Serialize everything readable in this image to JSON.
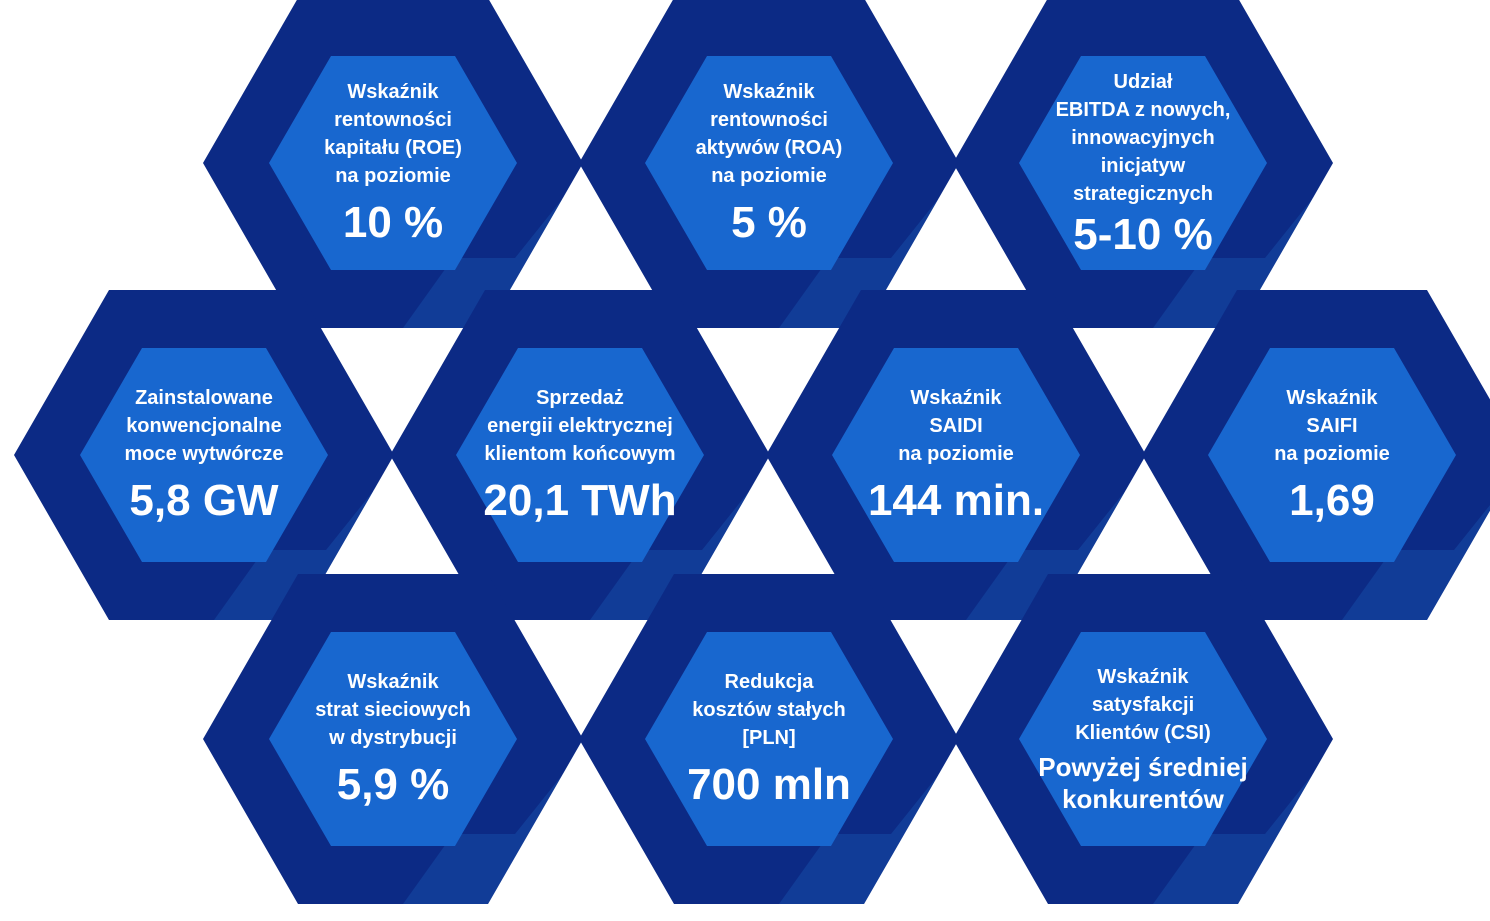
{
  "colors": {
    "outer_hex": "#0c2a85",
    "inner_hex": "#1867cf",
    "shadow": "#164aa6",
    "text": "#ffffff"
  },
  "tiles": [
    {
      "label": "Wskaźnik\nrentowności\nkapitału (ROE)\nna poziomie",
      "value": "10 %"
    },
    {
      "label": "Wskaźnik\nrentowności\naktywów (ROA)\nna poziomie",
      "value": "5 %"
    },
    {
      "label": "Udział\nEBITDA z nowych,\ninnowacyjnych\ninicjatyw\nstrategicznych",
      "value": "5-10 %"
    },
    {
      "label": "Zainstalowane\nkonwencjonalne\nmoce wytwórcze",
      "value": "5,8 GW"
    },
    {
      "label": "Sprzedaż\nenergii elektrycznej\nklientom końcowym",
      "value": "20,1 TWh"
    },
    {
      "label": "Wskaźnik\nSAIDI\nna poziomie",
      "value": "144 min."
    },
    {
      "label": "Wskaźnik\nSAIFI\nna poziomie",
      "value": "1,69"
    },
    {
      "label": "Wskaźnik\nstrat sieciowych\nw dystrybucji",
      "value": "5,9 %"
    },
    {
      "label": "Redukcja\nkosztów stałych\n[PLN]",
      "value": "700 mln"
    },
    {
      "label": "Wskaźnik\nsatysfakcji\nKlientów (CSI)",
      "value": "Powyżej średniej\nkonkurentów"
    }
  ]
}
